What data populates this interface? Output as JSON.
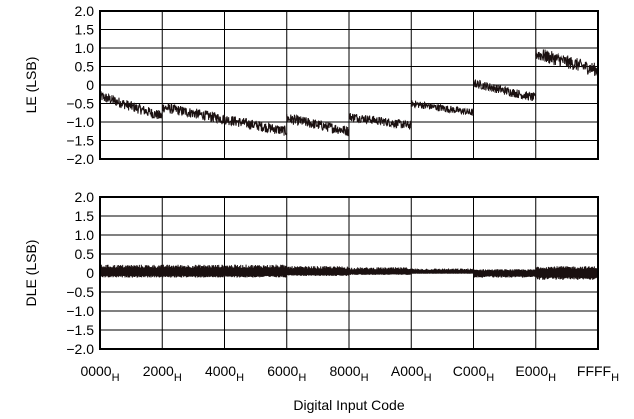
{
  "chart_data": [
    {
      "type": "line",
      "ylabel": "LE (LSB)",
      "ylim": [
        -2.0,
        2.0
      ],
      "yticks": [
        "2.0",
        "1.5",
        "1.0",
        "0.5",
        "0",
        "-0.5",
        "-1.0",
        "-1.5",
        "-2.0"
      ],
      "xlim": [
        0,
        65535
      ],
      "xticks": [
        0,
        8192,
        16384,
        24576,
        32768,
        40960,
        49152,
        57344,
        65535
      ],
      "grid": true,
      "series": [
        {
          "color": "#1a1010",
          "segments": [
            {
              "x": [
                0,
                8191
              ],
              "start": -0.3,
              "end": -0.85,
              "noise": 0.14
            },
            {
              "x": [
                8192,
                24575
              ],
              "start": -0.6,
              "end": -1.25,
              "noise": 0.14
            },
            {
              "x": [
                24576,
                32767
              ],
              "start": -0.9,
              "end": -1.25,
              "noise": 0.14
            },
            {
              "x": [
                32768,
                40959
              ],
              "start": -0.85,
              "end": -1.1,
              "noise": 0.12
            },
            {
              "x": [
                40960,
                49151
              ],
              "start": -0.5,
              "end": -0.75,
              "noise": 0.1
            },
            {
              "x": [
                49152,
                57343
              ],
              "start": 0.05,
              "end": -0.35,
              "noise": 0.12
            },
            {
              "x": [
                57344,
                65535
              ],
              "start": 0.85,
              "end": 0.4,
              "noise": 0.18
            }
          ]
        }
      ]
    },
    {
      "type": "line",
      "ylabel": "DLE (LSB)",
      "xlabel": "Digital Input Code",
      "ylim": [
        -2.0,
        2.0
      ],
      "yticks": [
        "2.0",
        "1.5",
        "1.0",
        "0.5",
        "0",
        "-0.5",
        "-1.0",
        "-1.5",
        "-2.0"
      ],
      "xlim": [
        0,
        65535
      ],
      "xticks": [
        0,
        8192,
        16384,
        24576,
        32768,
        40960,
        49152,
        57344,
        65535
      ],
      "xtick_labels": [
        "0000",
        "2000",
        "4000",
        "6000",
        "8000",
        "A000",
        "C000",
        "E000",
        "FFFF"
      ],
      "xtick_subscript": "H",
      "grid": true,
      "series": [
        {
          "color": "#1a1010",
          "segments": [
            {
              "x": [
                0,
                24575
              ],
              "upper": 0.22,
              "lower": -0.12
            },
            {
              "x": [
                24576,
                32767
              ],
              "upper": 0.18,
              "lower": -0.08
            },
            {
              "x": [
                32768,
                40959
              ],
              "upper": 0.15,
              "lower": -0.05
            },
            {
              "x": [
                40960,
                49151
              ],
              "upper": 0.12,
              "lower": -0.02
            },
            {
              "x": [
                49152,
                57343
              ],
              "upper": 0.1,
              "lower": -0.12
            },
            {
              "x": [
                57344,
                65535
              ],
              "upper": 0.18,
              "lower": -0.18
            }
          ]
        }
      ]
    }
  ]
}
